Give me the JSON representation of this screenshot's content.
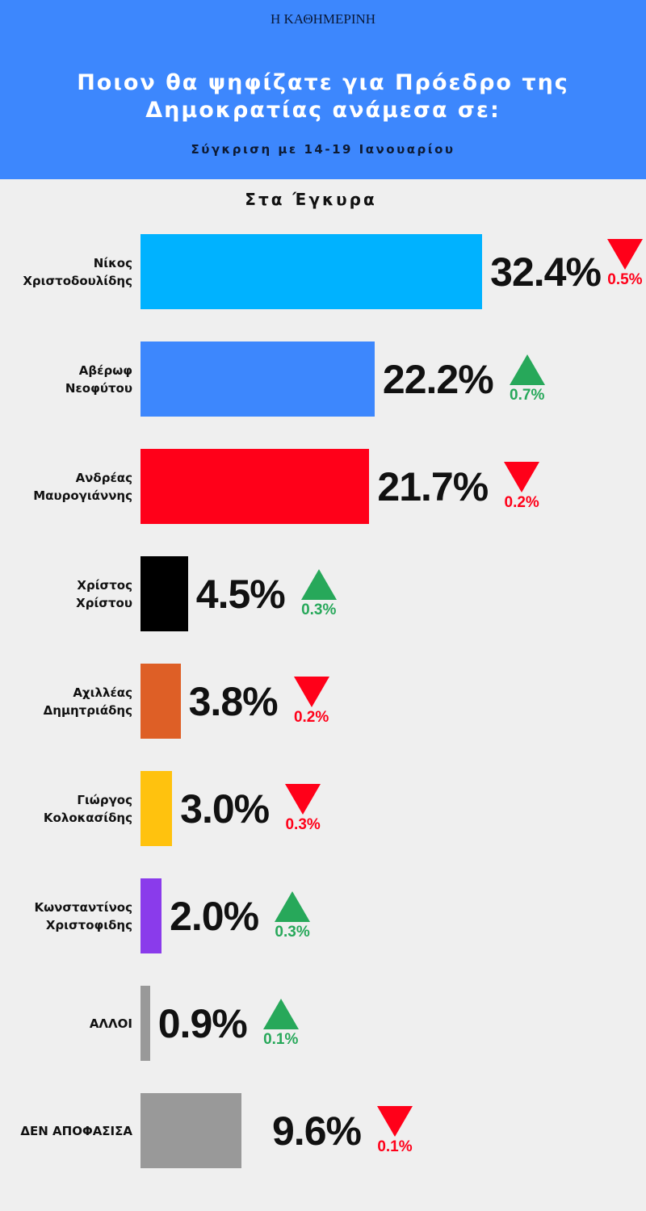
{
  "header": {
    "logo": "Η ΚΑΘΗΜΕΡΙΝΗ",
    "title": "Ποιον θα ψηφίζατε για Πρόεδρο της Δημοκρατίας ανάμεσα σε:",
    "subtitle": "Σύγκριση με 14-19 Ιανουαρίου",
    "section": "Στα Έγκυρα"
  },
  "colors": {
    "up": "#27a85a",
    "down": "#ff0019",
    "header": "#3d87fd",
    "background": "#efefef"
  },
  "chart_data": {
    "type": "bar",
    "orientation": "horizontal",
    "unit": "%",
    "categories": [
      "Νίκος\nΧριστοδουλίδης",
      "Αβέρωφ\nΝεοφύτου",
      "Ανδρέας\nΜαυρογιάννης",
      "Χρίστος\nΧρίστου",
      "Αχιλλέας\nΔημητριάδης",
      "Γιώργος\nΚολοκασίδης",
      "Κωνσταντίνος\nΧριστοφιδης",
      "ΑΛΛΟΙ",
      "ΔΕΝ ΑΠΟΦΑΣΙΣΑ"
    ],
    "values": [
      32.4,
      22.2,
      21.7,
      4.5,
      3.8,
      3.0,
      2.0,
      0.9,
      9.6
    ],
    "value_labels": [
      "32.4%",
      "22.2%",
      "21.7%",
      "4.5%",
      "3.8%",
      "3.0%",
      "2.0%",
      "0.9%",
      "9.6%"
    ],
    "change_direction": [
      "down",
      "up",
      "down",
      "up",
      "down",
      "down",
      "up",
      "up",
      "down"
    ],
    "change_labels": [
      "0.5%",
      "0.7%",
      "0.2%",
      "0.3%",
      "0.2%",
      "0.3%",
      "0.3%",
      "0.1%",
      "0.1%"
    ],
    "bar_colors": [
      "#00b2ff",
      "#3d87fd",
      "#ff0019",
      "#000000",
      "#de5f26",
      "#ffc20e",
      "#8a3beb",
      "#999999",
      "#999999"
    ]
  }
}
